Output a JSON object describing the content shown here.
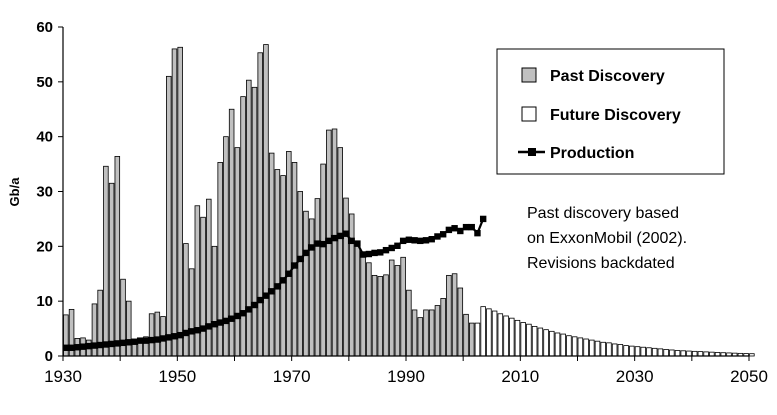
{
  "chart_data": {
    "type": "bar",
    "title": "",
    "xlabel": "",
    "ylabel": "Gb/a",
    "xlim": [
      1930,
      2050
    ],
    "ylim": [
      0,
      60
    ],
    "x_ticks": [
      "1930",
      "1950",
      "1970",
      "1990",
      "2010",
      "2030",
      "2050"
    ],
    "y_ticks": [
      "0",
      "10",
      "20",
      "30",
      "40",
      "50",
      "60"
    ],
    "grid": false,
    "legend_position": "top-right",
    "legend": [
      {
        "label": "Past Discovery",
        "style": "gray-bar"
      },
      {
        "label": "Future Discovery",
        "style": "white-bar"
      },
      {
        "label": "Production",
        "style": "line-square-marker"
      }
    ],
    "annotation": [
      "Past discovery based",
      "on ExxonMobil (2002).",
      "Revisions backdated"
    ],
    "series": [
      {
        "name": "Past Discovery",
        "kind": "bar",
        "x_start": 1930,
        "values": [
          7.5,
          8.5,
          3.2,
          3.3,
          2.9,
          9.5,
          12.0,
          34.6,
          31.5,
          36.4,
          14.0,
          10.0,
          3.0,
          2.5,
          3.5,
          7.7,
          8.0,
          7.2,
          51.0,
          56.0,
          56.3,
          20.5,
          15.9,
          27.4,
          25.3,
          28.6,
          20.0,
          35.3,
          40.0,
          45.0,
          38.0,
          47.3,
          50.3,
          49.0,
          55.3,
          56.8,
          37.0,
          34.0,
          32.9,
          37.3,
          35.3,
          30.0,
          26.4,
          25.0,
          28.7,
          35.0,
          41.2,
          41.4,
          38.0,
          28.8,
          25.9,
          20.0,
          19.0,
          17.0,
          14.7,
          14.5,
          14.8,
          17.5,
          16.5,
          18.0,
          12.0,
          8.4,
          7.0,
          8.4,
          8.4,
          9.2,
          10.5,
          14.7,
          15.0,
          12.4,
          7.6,
          6.0
        ]
      },
      {
        "name": "Future Discovery",
        "kind": "bar",
        "x_start": 2002,
        "values": [
          6.0,
          9.0,
          8.6,
          8.2,
          7.7,
          7.3,
          6.9,
          6.5,
          6.1,
          5.8,
          5.4,
          5.1,
          4.8,
          4.5,
          4.2,
          4.0,
          3.7,
          3.5,
          3.3,
          3.1,
          2.9,
          2.7,
          2.5,
          2.4,
          2.2,
          2.1,
          1.9,
          1.8,
          1.7,
          1.6,
          1.5,
          1.4,
          1.3,
          1.2,
          1.1,
          1.0,
          0.95,
          0.9,
          0.85,
          0.8,
          0.75,
          0.7,
          0.65,
          0.6,
          0.56,
          0.52,
          0.48,
          0.45,
          0.42
        ]
      },
      {
        "name": "Production",
        "kind": "line",
        "x_start": 1930,
        "values": [
          1.5,
          1.5,
          1.6,
          1.7,
          1.8,
          1.9,
          2.0,
          2.1,
          2.2,
          2.3,
          2.4,
          2.5,
          2.6,
          2.8,
          2.8,
          2.9,
          3.0,
          3.2,
          3.4,
          3.6,
          3.8,
          4.2,
          4.5,
          4.7,
          5.0,
          5.4,
          5.8,
          6.1,
          6.4,
          6.8,
          7.3,
          7.8,
          8.5,
          9.3,
          10.2,
          11.0,
          11.8,
          12.7,
          13.8,
          15.0,
          16.5,
          17.7,
          18.8,
          19.8,
          20.5,
          20.4,
          21.0,
          21.5,
          21.9,
          22.3,
          21.0,
          20.5,
          18.5,
          18.6,
          18.8,
          18.9,
          19.3,
          19.7,
          20.1,
          21.0,
          21.2,
          21.1,
          21.0,
          21.1,
          21.3,
          21.8,
          22.2,
          23.0,
          23.3,
          22.8,
          23.5,
          23.5,
          22.4,
          25.0
        ]
      }
    ]
  }
}
